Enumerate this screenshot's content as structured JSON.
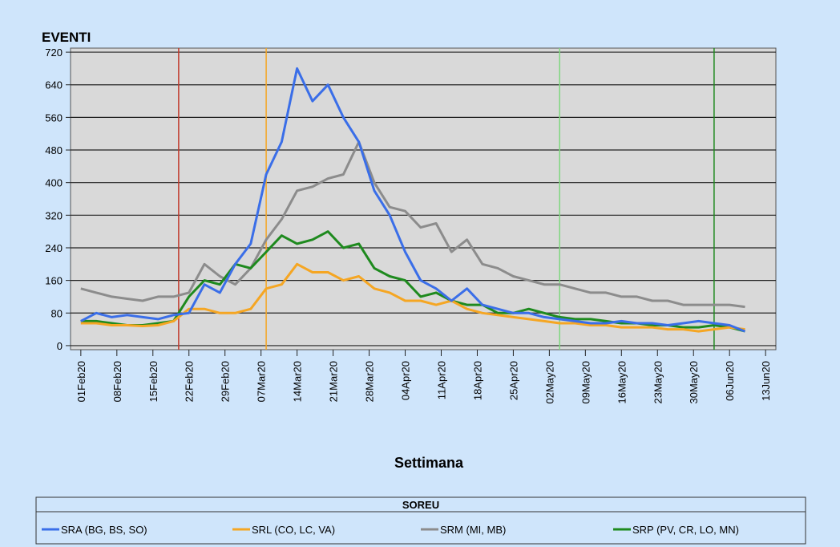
{
  "chart_data": {
    "type": "line",
    "title": "EVENTI",
    "x_label": "Settimana",
    "legend_title": "SOREU",
    "x": [
      "01Feb20",
      "04Feb20",
      "07Feb20",
      "10Feb20",
      "13Feb20",
      "16Feb20",
      "19Feb20",
      "22Feb20",
      "25Feb20",
      "28Feb20",
      "02Mar20",
      "05Mar20",
      "08Mar20",
      "11Mar20",
      "14Mar20",
      "17Mar20",
      "20Mar20",
      "23Mar20",
      "26Mar20",
      "29Mar20",
      "01Apr20",
      "04Apr20",
      "07Apr20",
      "10Apr20",
      "13Apr20",
      "16Apr20",
      "19Apr20",
      "22Apr20",
      "25Apr20",
      "28Apr20",
      "01May20",
      "04May20",
      "07May20",
      "10May20",
      "13May20",
      "16May20",
      "19May20",
      "22May20",
      "25May20",
      "28May20",
      "31May20",
      "03Jun20",
      "06Jun20",
      "09Jun20"
    ],
    "series": [
      {
        "name": "SRA (BG, BS, SO)",
        "color": "#3a6ee8",
        "values": [
          60,
          80,
          70,
          75,
          70,
          65,
          75,
          80,
          150,
          130,
          200,
          250,
          420,
          500,
          680,
          600,
          640,
          560,
          500,
          380,
          320,
          230,
          160,
          140,
          110,
          140,
          100,
          90,
          80,
          80,
          70,
          65,
          60,
          55,
          55,
          60,
          55,
          55,
          50,
          55,
          60,
          55,
          50,
          35
        ]
      },
      {
        "name": "SRL (CO, LC, VA)",
        "color": "#f5a623",
        "values": [
          55,
          55,
          50,
          50,
          48,
          50,
          60,
          90,
          90,
          80,
          80,
          90,
          140,
          150,
          200,
          180,
          180,
          160,
          170,
          140,
          130,
          110,
          110,
          100,
          110,
          90,
          80,
          75,
          70,
          65,
          60,
          55,
          55,
          50,
          50,
          45,
          45,
          45,
          40,
          40,
          35,
          40,
          45,
          40
        ]
      },
      {
        "name": "SRM (MI, MB)",
        "color": "#8c8c8c",
        "values": [
          140,
          130,
          120,
          115,
          110,
          120,
          120,
          130,
          200,
          170,
          150,
          190,
          260,
          310,
          380,
          390,
          410,
          420,
          500,
          400,
          340,
          330,
          290,
          300,
          230,
          260,
          200,
          190,
          170,
          160,
          150,
          150,
          140,
          130,
          130,
          120,
          120,
          110,
          110,
          100,
          100,
          100,
          100,
          95
        ]
      },
      {
        "name": "SRP (PV, CR, LO, MN)",
        "color": "#1e8a1e",
        "values": [
          60,
          60,
          55,
          50,
          50,
          55,
          60,
          120,
          160,
          150,
          200,
          190,
          230,
          270,
          250,
          260,
          280,
          240,
          250,
          190,
          170,
          160,
          120,
          130,
          110,
          100,
          100,
          80,
          80,
          90,
          80,
          70,
          65,
          65,
          60,
          55,
          55,
          50,
          50,
          45,
          45,
          50,
          45,
          35
        ]
      }
    ],
    "xlim": [
      "30Jan20",
      "15Jun20"
    ],
    "xticks": [
      "01Feb20",
      "08Feb20",
      "15Feb20",
      "22Feb20",
      "29Feb20",
      "07Mar20",
      "14Mar20",
      "21Mar20",
      "28Mar20",
      "04Apr20",
      "11Apr20",
      "18Apr20",
      "25Apr20",
      "02May20",
      "09May20",
      "16May20",
      "23May20",
      "30May20",
      "06Jun20",
      "13Jun20"
    ],
    "ylim": [
      -10,
      730
    ],
    "yticks": [
      0,
      80,
      160,
      240,
      320,
      400,
      480,
      560,
      640,
      720
    ],
    "grid": true,
    "vlines": [
      {
        "x": "20Feb20",
        "color": "#c0392b"
      },
      {
        "x": "08Mar20",
        "color": "#f5a623"
      },
      {
        "x": "04May20",
        "color": "#7ed67e"
      },
      {
        "x": "03Jun20",
        "color": "#1e8a1e"
      }
    ],
    "legend": "bottom"
  }
}
